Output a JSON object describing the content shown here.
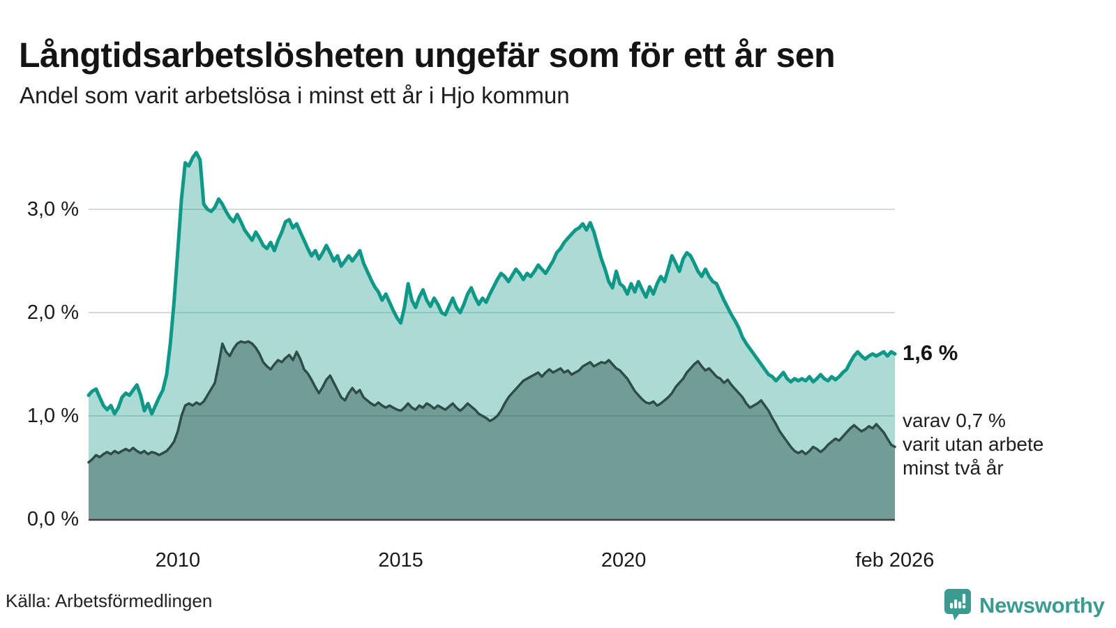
{
  "header": {
    "title": "Långtidsarbetslösheten ungefär som för ett år sen",
    "subtitle": "Andel som varit arbetslösa i minst ett år i Hjo kommun"
  },
  "chart_data": {
    "type": "area",
    "title": "Långtidsarbetslösheten ungefär som för ett år sen",
    "subtitle": "Andel som varit arbetslösa i minst ett år i Hjo kommun",
    "region": "Hjo kommun",
    "unit": "%",
    "frequency": "monthly",
    "x_start": "2008-01",
    "x_end": "2026-02",
    "ylim": [
      0,
      3.6
    ],
    "grid": true,
    "grid_color": "#d4d9dc",
    "axis_color": "#3f3f3f",
    "y_ticks": [
      {
        "value": 3.0,
        "label": "3,0 %"
      },
      {
        "value": 2.0,
        "label": "2,0 %"
      },
      {
        "value": 1.0,
        "label": "1,0 %"
      },
      {
        "value": 0.0,
        "label": "0,0 %"
      }
    ],
    "x_ticks": [
      {
        "index": 24,
        "label": "2010"
      },
      {
        "index": 84,
        "label": "2015"
      },
      {
        "index": 144,
        "label": "2020"
      },
      {
        "index": 217,
        "label": "feb 2026"
      }
    ],
    "series": [
      {
        "name": "Andel arbetslösa minst ett år",
        "line_color": "#0f9888",
        "fill_color": "rgba(22,154,136,0.36)",
        "line_width": 5,
        "latest_value": 1.6,
        "values": [
          1.2,
          1.24,
          1.26,
          1.18,
          1.1,
          1.06,
          1.1,
          1.02,
          1.08,
          1.18,
          1.22,
          1.2,
          1.25,
          1.3,
          1.2,
          1.05,
          1.12,
          1.02,
          1.1,
          1.18,
          1.25,
          1.4,
          1.7,
          2.1,
          2.6,
          3.1,
          3.45,
          3.42,
          3.5,
          3.55,
          3.48,
          3.05,
          3.0,
          2.98,
          3.02,
          3.1,
          3.05,
          2.98,
          2.92,
          2.88,
          2.95,
          2.88,
          2.8,
          2.75,
          2.7,
          2.78,
          2.72,
          2.65,
          2.62,
          2.68,
          2.6,
          2.7,
          2.78,
          2.88,
          2.9,
          2.82,
          2.86,
          2.78,
          2.7,
          2.62,
          2.55,
          2.6,
          2.52,
          2.58,
          2.65,
          2.58,
          2.5,
          2.55,
          2.45,
          2.5,
          2.55,
          2.5,
          2.55,
          2.6,
          2.48,
          2.4,
          2.32,
          2.25,
          2.2,
          2.12,
          2.18,
          2.1,
          2.02,
          1.95,
          1.9,
          2.05,
          2.28,
          2.12,
          2.05,
          2.15,
          2.22,
          2.12,
          2.06,
          2.14,
          2.08,
          2.0,
          1.98,
          2.06,
          2.14,
          2.05,
          2.0,
          2.08,
          2.18,
          2.24,
          2.15,
          2.08,
          2.14,
          2.1,
          2.18,
          2.25,
          2.32,
          2.38,
          2.35,
          2.3,
          2.36,
          2.42,
          2.38,
          2.32,
          2.38,
          2.35,
          2.4,
          2.46,
          2.42,
          2.38,
          2.44,
          2.5,
          2.58,
          2.62,
          2.68,
          2.72,
          2.76,
          2.8,
          2.82,
          2.86,
          2.8,
          2.87,
          2.78,
          2.65,
          2.52,
          2.42,
          2.3,
          2.24,
          2.4,
          2.28,
          2.25,
          2.18,
          2.28,
          2.2,
          2.3,
          2.22,
          2.15,
          2.25,
          2.18,
          2.28,
          2.35,
          2.3,
          2.42,
          2.55,
          2.48,
          2.4,
          2.52,
          2.58,
          2.55,
          2.48,
          2.4,
          2.35,
          2.42,
          2.35,
          2.3,
          2.28,
          2.2,
          2.12,
          2.05,
          1.98,
          1.92,
          1.85,
          1.76,
          1.7,
          1.65,
          1.6,
          1.55,
          1.5,
          1.45,
          1.4,
          1.38,
          1.34,
          1.38,
          1.42,
          1.36,
          1.33,
          1.36,
          1.34,
          1.36,
          1.34,
          1.38,
          1.33,
          1.36,
          1.4,
          1.36,
          1.34,
          1.38,
          1.35,
          1.38,
          1.42,
          1.45,
          1.52,
          1.58,
          1.62,
          1.58,
          1.55,
          1.58,
          1.6,
          1.58,
          1.6,
          1.62,
          1.58,
          1.62,
          1.6
        ]
      },
      {
        "name": "Andel arbetslösa minst två år",
        "line_color": "#2e4d48",
        "fill_color": "rgba(35,70,65,0.42)",
        "line_width": 3.5,
        "latest_value": 0.7,
        "values": [
          0.55,
          0.58,
          0.62,
          0.6,
          0.63,
          0.65,
          0.63,
          0.66,
          0.64,
          0.66,
          0.68,
          0.66,
          0.69,
          0.66,
          0.64,
          0.66,
          0.63,
          0.65,
          0.64,
          0.62,
          0.64,
          0.66,
          0.7,
          0.75,
          0.85,
          1.0,
          1.1,
          1.12,
          1.1,
          1.13,
          1.11,
          1.14,
          1.2,
          1.26,
          1.32,
          1.5,
          1.7,
          1.62,
          1.58,
          1.65,
          1.7,
          1.72,
          1.71,
          1.72,
          1.7,
          1.66,
          1.6,
          1.52,
          1.48,
          1.45,
          1.5,
          1.54,
          1.52,
          1.56,
          1.59,
          1.54,
          1.62,
          1.55,
          1.45,
          1.41,
          1.35,
          1.28,
          1.22,
          1.28,
          1.35,
          1.39,
          1.32,
          1.25,
          1.18,
          1.15,
          1.22,
          1.27,
          1.22,
          1.25,
          1.18,
          1.15,
          1.12,
          1.1,
          1.13,
          1.1,
          1.08,
          1.1,
          1.08,
          1.06,
          1.05,
          1.08,
          1.12,
          1.08,
          1.06,
          1.1,
          1.08,
          1.12,
          1.1,
          1.07,
          1.1,
          1.08,
          1.06,
          1.09,
          1.12,
          1.08,
          1.05,
          1.08,
          1.12,
          1.09,
          1.06,
          1.02,
          1.0,
          0.98,
          0.95,
          0.97,
          1.0,
          1.05,
          1.12,
          1.18,
          1.22,
          1.26,
          1.3,
          1.34,
          1.36,
          1.38,
          1.4,
          1.42,
          1.38,
          1.42,
          1.45,
          1.42,
          1.44,
          1.46,
          1.42,
          1.44,
          1.4,
          1.42,
          1.44,
          1.48,
          1.5,
          1.52,
          1.48,
          1.5,
          1.52,
          1.51,
          1.54,
          1.5,
          1.46,
          1.44,
          1.4,
          1.36,
          1.3,
          1.24,
          1.2,
          1.16,
          1.13,
          1.12,
          1.14,
          1.1,
          1.12,
          1.15,
          1.18,
          1.22,
          1.28,
          1.32,
          1.36,
          1.42,
          1.46,
          1.5,
          1.53,
          1.48,
          1.44,
          1.46,
          1.42,
          1.38,
          1.36,
          1.32,
          1.35,
          1.3,
          1.26,
          1.22,
          1.18,
          1.12,
          1.08,
          1.1,
          1.12,
          1.15,
          1.1,
          1.05,
          0.98,
          0.92,
          0.85,
          0.8,
          0.75,
          0.7,
          0.66,
          0.64,
          0.66,
          0.63,
          0.66,
          0.7,
          0.68,
          0.65,
          0.68,
          0.72,
          0.75,
          0.78,
          0.76,
          0.8,
          0.84,
          0.88,
          0.91,
          0.88,
          0.85,
          0.87,
          0.9,
          0.88,
          0.92,
          0.88,
          0.84,
          0.78,
          0.72,
          0.7
        ]
      }
    ]
  },
  "annotations": {
    "end_label": "1,6 %",
    "secondary_line1": "varav 0,7 %",
    "secondary_line2": "varit utan arbete",
    "secondary_line3": "minst två år"
  },
  "footer": {
    "source": "Källa: Arbetsförmedlingen",
    "brand": "Newsworthy",
    "brand_color": "#3a9b90"
  }
}
